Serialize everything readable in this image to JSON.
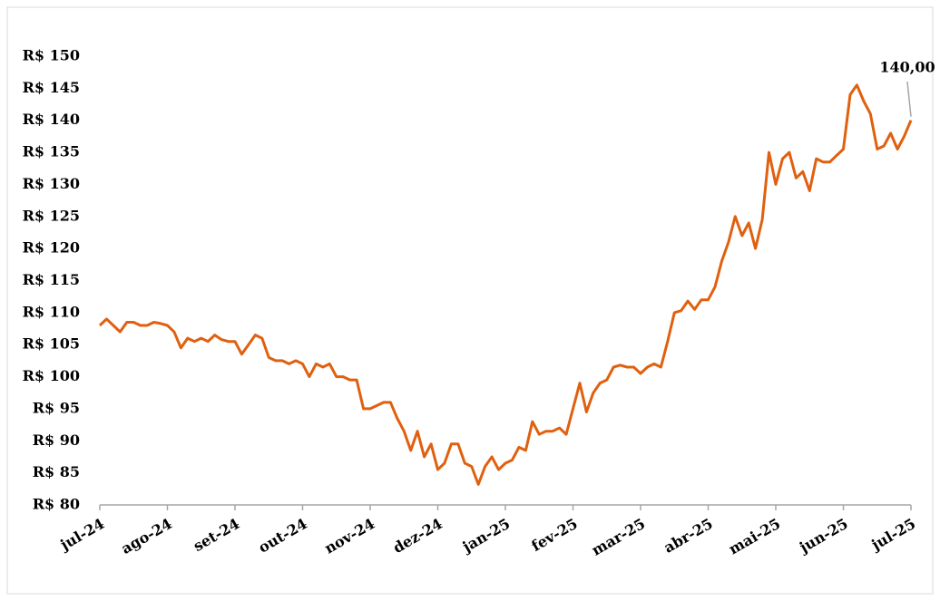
{
  "chart_data": {
    "type": "line",
    "categories": [
      "jul-24",
      null,
      null,
      null,
      null,
      null,
      null,
      null,
      null,
      null,
      "ago-24",
      null,
      null,
      null,
      null,
      null,
      null,
      null,
      null,
      null,
      "set-24",
      null,
      null,
      null,
      null,
      null,
      null,
      null,
      null,
      null,
      "out-24",
      null,
      null,
      null,
      null,
      null,
      null,
      null,
      null,
      null,
      "nov-24",
      null,
      null,
      null,
      null,
      null,
      null,
      null,
      null,
      null,
      "dez-24",
      null,
      null,
      null,
      null,
      null,
      null,
      null,
      null,
      null,
      "jan-25",
      null,
      null,
      null,
      null,
      null,
      null,
      null,
      null,
      null,
      "fev-25",
      null,
      null,
      null,
      null,
      null,
      null,
      null,
      null,
      null,
      "mar-25",
      null,
      null,
      null,
      null,
      null,
      null,
      null,
      null,
      null,
      "abr-25",
      null,
      null,
      null,
      null,
      null,
      null,
      null,
      null,
      null,
      "mai-25",
      null,
      null,
      null,
      null,
      null,
      null,
      null,
      null,
      null,
      "jun-25",
      null,
      null,
      null,
      null,
      null,
      null,
      null,
      null,
      null,
      "jul-25"
    ],
    "values": [
      108,
      109,
      108,
      107,
      108.5,
      108.5,
      108,
      108,
      108.5,
      108.3,
      108,
      107,
      104.5,
      106,
      105.5,
      106,
      105.5,
      106.5,
      105.8,
      105.5,
      105.5,
      103.5,
      105,
      106.5,
      106,
      103,
      102.5,
      102.5,
      102,
      102.5,
      102,
      100,
      102,
      101.5,
      102,
      100,
      100,
      99.5,
      99.5,
      95,
      95,
      95.5,
      96,
      96,
      93.5,
      91.5,
      88.5,
      91.5,
      87.5,
      89.5,
      85.5,
      86.5,
      89.5,
      89.5,
      86.5,
      86,
      83.2,
      86,
      87.5,
      85.5,
      86.5,
      87,
      89,
      88.5,
      93,
      91,
      91.5,
      91.5,
      92,
      91,
      95,
      99,
      94.5,
      97.5,
      99,
      99.5,
      101.5,
      101.8,
      101.5,
      101.5,
      100.5,
      101.5,
      102,
      101.5,
      105.5,
      110,
      110.3,
      111.8,
      110.5,
      112,
      112,
      114,
      118,
      121,
      125,
      122,
      124,
      120,
      124.5,
      135,
      130,
      134,
      135,
      131,
      132,
      129,
      134,
      133.5,
      133.5,
      134.5,
      135.5,
      144,
      145.5,
      143,
      141,
      135.5,
      136,
      138,
      135.5,
      137.5,
      140
    ],
    "color": "#e0600f",
    "ylim": [
      80,
      150
    ],
    "yticks": [
      {
        "value": 80,
        "label": "R$ 80"
      },
      {
        "value": 85,
        "label": "R$ 85"
      },
      {
        "value": 90,
        "label": "R$ 90"
      },
      {
        "value": 95,
        "label": "R$ 95"
      },
      {
        "value": 100,
        "label": "R$ 100"
      },
      {
        "value": 105,
        "label": "R$ 105"
      },
      {
        "value": 110,
        "label": "R$ 110"
      },
      {
        "value": 115,
        "label": "R$ 115"
      },
      {
        "value": 120,
        "label": "R$ 120"
      },
      {
        "value": 125,
        "label": "R$ 125"
      },
      {
        "value": 130,
        "label": "R$ 130"
      },
      {
        "value": 135,
        "label": "R$ 135"
      },
      {
        "value": 140,
        "label": "R$ 140"
      },
      {
        "value": 145,
        "label": "R$ 145"
      },
      {
        "value": 150,
        "label": "R$ 150"
      }
    ],
    "grid": false,
    "annotation": "140,00"
  }
}
